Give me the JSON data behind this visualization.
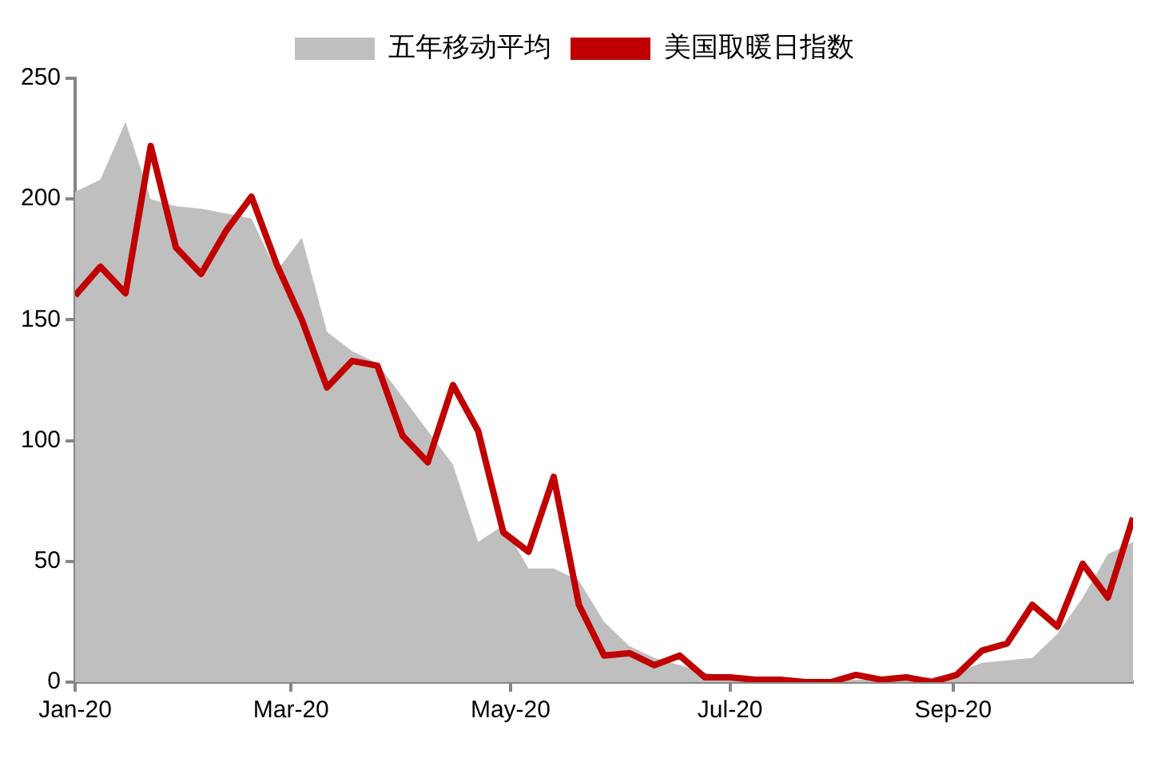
{
  "chart_data": {
    "type": "line",
    "x": [
      "2020-01-01",
      "2020-01-08",
      "2020-01-15",
      "2020-01-22",
      "2020-01-29",
      "2020-02-05",
      "2020-02-12",
      "2020-02-19",
      "2020-02-26",
      "2020-03-04",
      "2020-03-11",
      "2020-03-18",
      "2020-03-25",
      "2020-04-01",
      "2020-04-08",
      "2020-04-15",
      "2020-04-22",
      "2020-04-29",
      "2020-05-06",
      "2020-05-13",
      "2020-05-20",
      "2020-05-27",
      "2020-06-03",
      "2020-06-10",
      "2020-06-17",
      "2020-06-24",
      "2020-07-01",
      "2020-07-08",
      "2020-07-15",
      "2020-07-22",
      "2020-07-29",
      "2020-08-05",
      "2020-08-12",
      "2020-08-19",
      "2020-08-26",
      "2020-09-02",
      "2020-09-09",
      "2020-09-16",
      "2020-09-23",
      "2020-09-30",
      "2020-10-07",
      "2020-10-14",
      "2020-10-21"
    ],
    "series": [
      {
        "name": "五年移动平均",
        "type": "area",
        "color": "#bfbfbf",
        "values": [
          203,
          208,
          232,
          200,
          197,
          196,
          194,
          192,
          170,
          184,
          145,
          137,
          132,
          118,
          104,
          90,
          58,
          65,
          47,
          47,
          42,
          25,
          15,
          10,
          7,
          4,
          2,
          2,
          1,
          1,
          1,
          1,
          1,
          2,
          2,
          4,
          8,
          9,
          10,
          20,
          35,
          53,
          58
        ]
      },
      {
        "name": "美国取暖日指数",
        "type": "line",
        "color": "#c00000",
        "values": [
          160,
          172,
          161,
          222,
          180,
          169,
          187,
          201,
          173,
          150,
          122,
          133,
          131,
          102,
          91,
          123,
          104,
          62,
          54,
          85,
          32,
          11,
          12,
          7,
          11,
          2,
          2,
          1,
          1,
          0,
          0,
          3,
          1,
          2,
          0,
          3,
          13,
          16,
          32,
          23,
          49,
          35,
          68
        ]
      }
    ],
    "xlim": [
      "2020-01-01",
      "2020-10-21"
    ],
    "xticks": [
      {
        "value": "2020-01-01",
        "label": "Jan-20"
      },
      {
        "value": "2020-03-01",
        "label": "Mar-20"
      },
      {
        "value": "2020-05-01",
        "label": "May-20"
      },
      {
        "value": "2020-07-01",
        "label": "Jul-20"
      },
      {
        "value": "2020-09-01",
        "label": "Sep-20"
      }
    ],
    "ylim": [
      0,
      250
    ],
    "yticks": [
      0,
      50,
      100,
      150,
      200,
      250
    ],
    "grid": false,
    "legend": "top",
    "marker": "none",
    "line_style": "solid"
  }
}
